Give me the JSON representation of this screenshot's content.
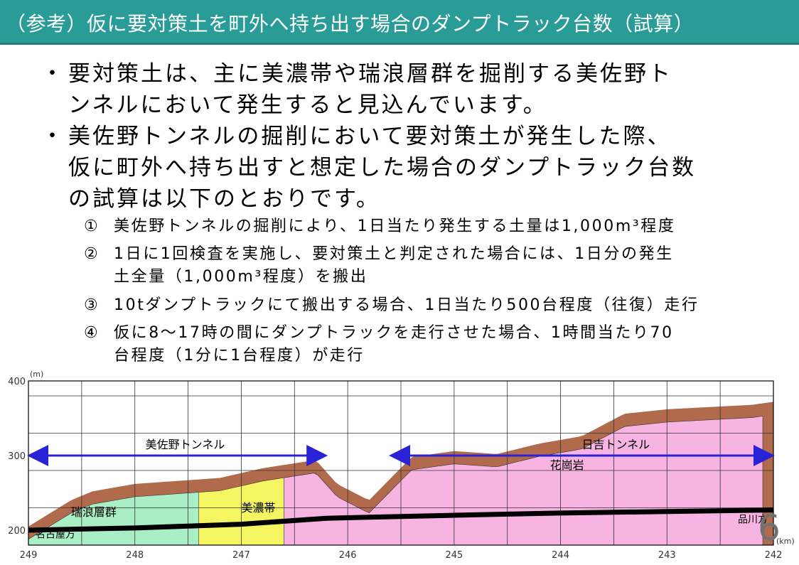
{
  "title": "（参考）仮に要対策土を町外へ持ち出す場合のダンプトラック台数（試算）",
  "bullets": [
    {
      "mark": "・",
      "lines": [
        "要対策土は、主に美濃帯や瑞浪層群を掘削する美佐野ト",
        "ンネルにおいて発生すると見込んでいます。"
      ]
    },
    {
      "mark": "・",
      "lines": [
        "美佐野トンネルの掘削において要対策土が発生した際、",
        "仮に町外へ持ち出すと想定した場合のダンプトラック台数",
        "の試算は以下のとおりです。"
      ]
    }
  ],
  "items": [
    {
      "num": "①",
      "lines": [
        "美佐野トンネルの掘削により、1日当たり発生する土量は1,000m³程度"
      ]
    },
    {
      "num": "②",
      "lines": [
        "1日に1回検査を実施し、要対策土と判定された場合には、1日分の発生",
        "土全量（1,000m³程度）を搬出"
      ]
    },
    {
      "num": "③",
      "lines": [
        "10tダンプトラックにて搬出する場合、1日当たり500台程度（往復）走行"
      ]
    },
    {
      "num": "④",
      "lines": [
        "仮に8～17時の間にダンプトラックを走行させた場合、1時間当たり70",
        "台程度（1分に1台程度）が走行"
      ]
    }
  ],
  "page_number": "6",
  "colors": {
    "title_bg": "#2a9c97",
    "arrow": "#2a22d6",
    "granite": "#f7b4e2",
    "mino": "#f5f562",
    "mizunami": "#a9eec4",
    "surface": "#b26a4c",
    "route": "#000000"
  },
  "chart_data": {
    "type": "area",
    "y_unit": "(m)",
    "x_unit": "(km)",
    "y_ticks": [
      "400",
      "300",
      "200"
    ],
    "x_ticks": [
      "249",
      "248",
      "247",
      "246",
      "245",
      "244",
      "243",
      "242"
    ],
    "ylim": [
      180,
      400
    ],
    "xlim": [
      249,
      242
    ],
    "x_reversed": true,
    "grid": true,
    "labels": {
      "tunnel_misano": "美佐野トンネル",
      "tunnel_hiyoshi": "日吉トンネル",
      "granite": "花崗岩",
      "mino": "美濃帯",
      "mizunami": "瑞浪層群",
      "nagoya": "名古屋方",
      "shinagawa": "品川方"
    },
    "tunnels": [
      {
        "name": "美佐野トンネル",
        "from_km": 249.0,
        "to_km": 246.2,
        "elev_m": 300
      },
      {
        "name": "日吉トンネル",
        "from_km": 245.6,
        "to_km": 242.0,
        "elev_m": 300
      }
    ],
    "route": {
      "km": [
        249.0,
        248.0,
        247.0,
        246.2,
        245.0,
        244.0,
        243.0,
        242.0
      ],
      "elev_m": [
        200,
        203,
        208,
        216,
        220,
        223,
        225,
        227
      ]
    },
    "ground_surface": {
      "km": [
        249.0,
        248.6,
        248.4,
        248.0,
        247.6,
        247.2,
        246.8,
        246.3,
        246.1,
        245.8,
        245.4,
        245.0,
        244.6,
        244.2,
        243.8,
        243.4,
        243.0,
        242.6,
        242.2,
        242.0
      ],
      "elev_m": [
        205,
        240,
        252,
        262,
        266,
        270,
        283,
        294,
        262,
        240,
        298,
        306,
        302,
        316,
        326,
        356,
        362,
        365,
        368,
        372
      ]
    },
    "strata": [
      {
        "name": "瑞浪層群",
        "from_km": 249.0,
        "to_km": 247.2
      },
      {
        "name": "美濃帯",
        "from_km": 247.4,
        "to_km": 246.3
      },
      {
        "name": "花崗岩",
        "from_km": 246.6,
        "to_km": 242.1
      }
    ]
  }
}
